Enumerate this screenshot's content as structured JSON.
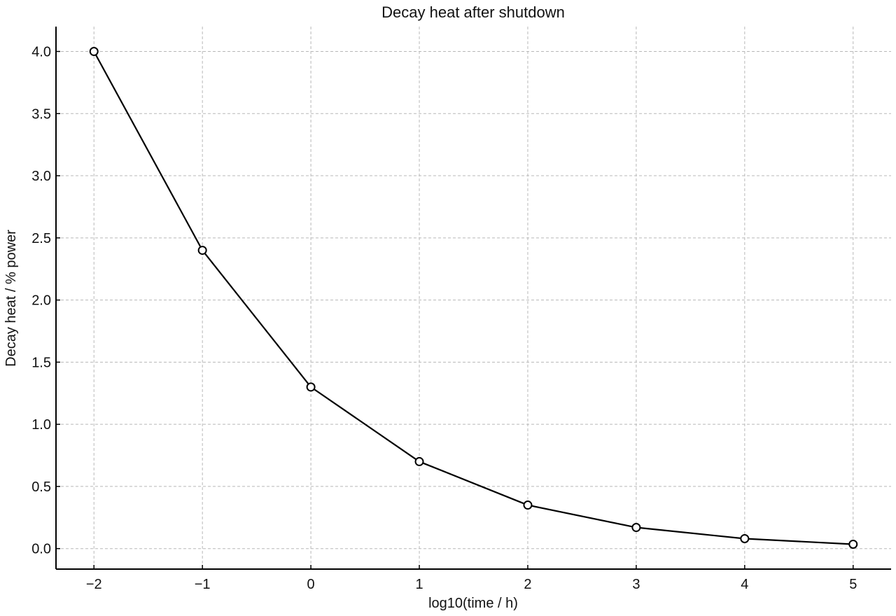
{
  "chart_data": {
    "type": "line",
    "title": "Decay heat after shutdown",
    "xlabel": "log10(time / h)",
    "ylabel": "Decay heat / % power",
    "x": [
      -2,
      -1,
      0,
      1,
      2,
      3,
      4,
      5
    ],
    "series": [
      {
        "values": [
          4.0,
          2.4,
          1.3,
          0.7,
          0.35,
          0.17,
          0.08,
          0.035
        ],
        "color": "#000000",
        "marker": "open-circle"
      }
    ],
    "xlim": [
      -2.35,
      5.35
    ],
    "ylim": [
      -0.165,
      4.2
    ],
    "x_ticks": [
      -2,
      -1,
      0,
      1,
      2,
      3,
      4,
      5
    ],
    "x_tick_labels": [
      "−2",
      "−1",
      "0",
      "1",
      "2",
      "3",
      "4",
      "5"
    ],
    "y_ticks": [
      0.0,
      0.5,
      1.0,
      1.5,
      2.0,
      2.5,
      3.0,
      3.5,
      4.0
    ],
    "y_tick_labels": [
      "0.0",
      "0.5",
      "1.0",
      "1.5",
      "2.0",
      "2.5",
      "3.0",
      "3.5",
      "4.0"
    ],
    "grid": true,
    "grid_style": "dashed",
    "grid_color": "#b8b8b8",
    "legend": "none"
  }
}
